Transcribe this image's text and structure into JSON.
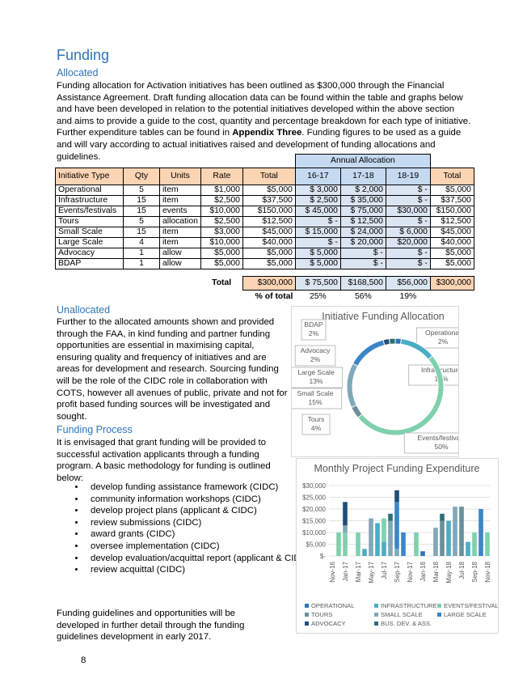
{
  "header": {
    "title": "Funding",
    "subtitle": "Allocated"
  },
  "intro": {
    "parts": [
      "Funding allocation for Activation initiatives has been outlined as $300,000 through the Financial Assistance Agreement. Draft funding allocation data can be found within the table and graphs below and have been developed in relation to the potential initiatives developed within the above section and aims to provide a guide to the cost, quantity and percentage breakdown for each type of initiative. Further expenditure tables can be found in ",
      "Appendix Three",
      ". Funding figures to be used as a guide and will vary according to actual initiatives raised and development of funding allocations and guidelines."
    ]
  },
  "table": {
    "group_header": "Annual Allocation",
    "columns": [
      "Initiative Type",
      "Qty",
      "Units",
      "Rate",
      "Total",
      "16-17",
      "17-18",
      "18-19",
      "Total"
    ],
    "rows": [
      [
        "Operational",
        "5",
        "item",
        "$1,000",
        "$5,000",
        "$ 3,000",
        "$ 2,000",
        "$ -",
        "$5,000"
      ],
      [
        "Infrastructure",
        "15",
        "item",
        "$2,500",
        "$37,500",
        "$ 2,500",
        "$ 35,000",
        "$ -",
        "$37,500"
      ],
      [
        "Events/festivals",
        "15",
        "events",
        "$10,000",
        "$150,000",
        "$ 45,000",
        "$ 75,000",
        "$30,000",
        "$150,000"
      ],
      [
        "Tours",
        "5",
        "allocation",
        "$2,500",
        "$12,500",
        "$ -",
        "$ 12,500",
        "$ -",
        "$12,500"
      ],
      [
        "Small Scale",
        "15",
        "item",
        "$3,000",
        "$45,000",
        "$ 15,000",
        "$ 24,000",
        "$ 6,000",
        "$45,000"
      ],
      [
        "Large Scale",
        "4",
        "item",
        "$10,000",
        "$40,000",
        "$ -",
        "$ 20,000",
        "$20,000",
        "$40,000"
      ],
      [
        "Advocacy",
        "1",
        "allow",
        "$5,000",
        "$5,000",
        "$ 5,000",
        "$ -",
        "$ -",
        "$5,000"
      ],
      [
        "BDAP",
        "1",
        "allow",
        "$5,000",
        "$5,000",
        "$ 5,000",
        "$ -",
        "$ -",
        "$5,000"
      ]
    ],
    "total_row": {
      "label": "Total",
      "cells": [
        "$300,000",
        "$ 75,500",
        "$168,500",
        "$56,000",
        "$300,000"
      ]
    },
    "percent_row": {
      "label": "% of total",
      "cells": [
        "25%",
        "56%",
        "19%"
      ]
    }
  },
  "unallocated": {
    "title": "Unallocated",
    "text": "Further to the allocated amounts shown and provided through the FAA, in kind funding and partner funding opportunities are essential in maximising capital, ensuring quality and frequency of initiatives and are areas for development and research. Sourcing funding will be the role of the CIDC role in collaboration with COTS, however all avenues of public, private and not for profit based funding sources will be investigated and sought."
  },
  "process": {
    "title": "Funding Process",
    "text": "It is envisaged that grant funding will be provided to successful activation applicants through a funding program. A basic methodology for funding is outlined below:",
    "bullets": [
      "develop funding assistance framework (CIDC)",
      "community information workshops (CIDC)",
      "develop project plans (applicant & CIDC)",
      "review submissions (CIDC)",
      "award grants (CIDC)",
      "oversee implementation (CIDC)",
      "develop evaluation/acquittal report (applicant & CIDC)",
      "review acquittal (CIDC)"
    ],
    "closing": "Funding guidelines and opportunities will be developed in further detail through the funding guidelines development in early 2017."
  },
  "page_number": "8",
  "chart_data": [
    {
      "type": "donut",
      "title": "Initiative Funding Allocation",
      "categories": [
        "Operational",
        "Infrastructure",
        "Events/festivals",
        "Tours",
        "Small Scale",
        "Large Scale",
        "Advocacy",
        "BDAP"
      ],
      "values": [
        2,
        12,
        50,
        4,
        15,
        13,
        2,
        2
      ],
      "value_labels": [
        "2%",
        "12%",
        "50%",
        "4%",
        "15%",
        "13%",
        "2%",
        "2%"
      ],
      "colors": [
        "#2e75b6",
        "#4bacc6",
        "#7fd1ae",
        "#6a8f99",
        "#7fa8b8",
        "#3a86c8",
        "#1f4e79",
        "#2f6e73"
      ]
    },
    {
      "type": "stacked_bar",
      "title": "Monthly Project Funding Expenditure",
      "categories": [
        "Nov-16",
        null,
        "Jan-17",
        null,
        "Mar-17",
        null,
        "May-17",
        null,
        "Jul-17",
        null,
        "Sep-17",
        null,
        "Nov-17",
        null,
        "Jan-18",
        null,
        "Mar-18",
        null,
        "May-18",
        null,
        "Jul-18",
        null,
        "Sep-18",
        null,
        "Nov-18"
      ],
      "ylim": [
        0,
        30000
      ],
      "yticks": [
        {
          "value": 0,
          "label": "$-"
        },
        {
          "value": 5000,
          "label": "$5,000"
        },
        {
          "value": 10000,
          "label": "$10,000"
        },
        {
          "value": 15000,
          "label": "$15,000"
        },
        {
          "value": 20000,
          "label": "$20,000"
        },
        {
          "value": 25000,
          "label": "$25,000"
        },
        {
          "value": 30000,
          "label": "$30,000"
        }
      ],
      "grid": true,
      "series": [
        {
          "name": "OPERATIONAL",
          "color": "#2e75b6",
          "values": [
            0,
            0,
            0,
            0,
            0,
            0,
            0,
            0,
            0,
            0,
            0,
            0,
            0,
            0,
            2000,
            0,
            0,
            0,
            0,
            0,
            0,
            0,
            0,
            0,
            0
          ]
        },
        {
          "name": "INFRASTRUCTURE",
          "color": "#4bacc6",
          "values": [
            0,
            0,
            0,
            0,
            0,
            3000,
            0,
            14000,
            6000,
            0,
            0,
            0,
            0,
            0,
            0,
            0,
            0,
            0,
            15000,
            0,
            0,
            6000,
            0,
            0,
            0
          ]
        },
        {
          "name": "EVENTS/FESTIVALS",
          "color": "#7fd1ae",
          "values": [
            0,
            10000,
            10000,
            0,
            10000,
            0,
            0,
            0,
            10000,
            0,
            0,
            0,
            0,
            10000,
            0,
            0,
            0,
            0,
            0,
            0,
            0,
            0,
            10000,
            0,
            10000
          ]
        },
        {
          "name": "TOURS",
          "color": "#6a8f99",
          "values": [
            0,
            0,
            0,
            0,
            0,
            0,
            0,
            0,
            0,
            0,
            0,
            0,
            0,
            0,
            0,
            0,
            0,
            15000,
            0,
            0,
            21000,
            0,
            0,
            0,
            0
          ]
        },
        {
          "name": "SMALL SCALE",
          "color": "#7fa8b8",
          "values": [
            0,
            0,
            3000,
            0,
            0,
            0,
            16000,
            0,
            0,
            15000,
            3000,
            0,
            0,
            0,
            0,
            0,
            12000,
            0,
            0,
            21000,
            0,
            0,
            0,
            0,
            0
          ]
        },
        {
          "name": "LARGE SCALE",
          "color": "#3a86c8",
          "values": [
            0,
            0,
            0,
            0,
            0,
            0,
            0,
            0,
            0,
            0,
            20000,
            10000,
            0,
            0,
            0,
            0,
            0,
            0,
            0,
            0,
            0,
            0,
            0,
            20000,
            0
          ]
        },
        {
          "name": "ADVOCACY",
          "color": "#1f4e79",
          "values": [
            0,
            0,
            10000,
            0,
            0,
            0,
            0,
            0,
            0,
            0,
            5000,
            0,
            0,
            0,
            0,
            0,
            0,
            0,
            0,
            0,
            0,
            0,
            0,
            0,
            0
          ]
        },
        {
          "name": "BUS. DEV. & ASS.",
          "color": "#2f6e73",
          "values": [
            0,
            0,
            0,
            0,
            0,
            0,
            0,
            0,
            0,
            3000,
            0,
            0,
            0,
            0,
            0,
            0,
            0,
            3000,
            0,
            0,
            0,
            0,
            0,
            0,
            0
          ]
        }
      ]
    }
  ]
}
